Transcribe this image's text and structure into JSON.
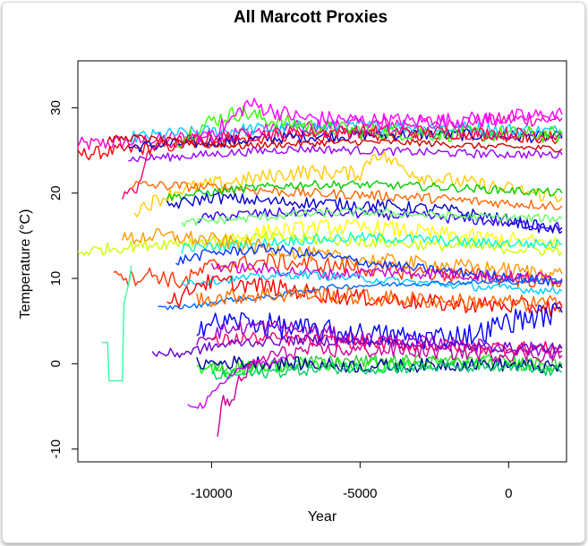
{
  "chart_data": {
    "type": "line",
    "title": "All Marcott Proxies",
    "xlabel": "Year",
    "ylabel": "Temperature (°C)",
    "xlim": [
      -14500,
      1950
    ],
    "ylim": [
      -11.5,
      35.5
    ],
    "x_ticks": [
      -10000,
      -5000,
      0
    ],
    "x_tick_labels": [
      "-10000",
      "-5000",
      "0"
    ],
    "y_ticks": [
      -10,
      0,
      10,
      20,
      30
    ],
    "y_tick_labels": [
      "-10",
      "0",
      "10",
      "20",
      "30"
    ],
    "grid": false,
    "legend": "none",
    "series": [
      {
        "color": "#ff00cc",
        "x": [
          -14600,
          -12000,
          -10000,
          -8000,
          -6000,
          -4000,
          -2000,
          0,
          1800
        ],
        "y": [
          25.6,
          26.2,
          26.8,
          27.4,
          27.9,
          28.2,
          28.4,
          28.6,
          28.8
        ],
        "noise": 0.9
      },
      {
        "color": "#ff0000",
        "x": [
          -14600,
          -12000,
          -10000,
          -8000,
          -6000,
          -4000,
          -2000,
          0,
          1800
        ],
        "y": [
          24.5,
          25.3,
          26.0,
          26.5,
          26.8,
          26.9,
          27.0,
          26.8,
          26.4
        ],
        "noise": 0.8
      },
      {
        "color": "#0000cc",
        "x": [
          -12800,
          -11000,
          -9000,
          -7000,
          -5000,
          -3000,
          -1000,
          1800
        ],
        "y": [
          25.4,
          25.8,
          26.2,
          26.6,
          26.8,
          26.9,
          26.8,
          26.5
        ],
        "noise": 0.7
      },
      {
        "color": "#00ccff",
        "x": [
          -12700,
          -11000,
          -9000,
          -7000,
          -5000,
          -3000,
          -1000,
          1800
        ],
        "y": [
          26.5,
          27.0,
          27.4,
          27.7,
          27.8,
          27.8,
          27.6,
          27.2
        ],
        "noise": 0.8
      },
      {
        "color": "#33ff00",
        "x": [
          -11200,
          -10000,
          -9000,
          -8000,
          -6000,
          -4000,
          -2000,
          1800
        ],
        "y": [
          26.0,
          28.5,
          29.5,
          28.5,
          27.5,
          27.2,
          27.0,
          26.8
        ],
        "noise": 1.0
      },
      {
        "color": "#ff00ff",
        "x": [
          -10500,
          -9500,
          -8800,
          -7000,
          -5000,
          -3000,
          -1000,
          1800
        ],
        "y": [
          26.5,
          28.0,
          30.5,
          28.8,
          28.5,
          28.4,
          28.6,
          29.2
        ],
        "noise": 1.0
      },
      {
        "color": "#ff0066",
        "x": [
          -13000,
          -12600,
          -12000,
          -10000,
          -8000,
          -6000,
          -4000,
          -2000,
          0,
          1800
        ],
        "y": [
          20.0,
          20.0,
          25.5,
          26.5,
          27.0,
          27.2,
          27.3,
          27.1,
          27.0,
          26.7
        ],
        "noise": 0.8
      },
      {
        "color": "#cc0000",
        "x": [
          -13500,
          -12500,
          -11000,
          -9000,
          -7000,
          -5000,
          -3000,
          -1000,
          1800
        ],
        "y": [
          26.3,
          26.5,
          26.0,
          25.5,
          25.8,
          26.0,
          25.9,
          25.5,
          25.2
        ],
        "noise": 0.4
      },
      {
        "color": "#9900ff",
        "x": [
          -12800,
          -11000,
          -9000,
          -7000,
          -5000,
          -3000,
          -1000,
          1800
        ],
        "y": [
          24.0,
          24.3,
          24.8,
          25.2,
          25.0,
          24.8,
          24.6,
          24.5
        ],
        "noise": 0.5
      },
      {
        "color": "#ffcc00",
        "x": [
          -12600,
          -11000,
          -9000,
          -7000,
          -5000,
          -4500,
          -3000,
          -1000,
          1800
        ],
        "y": [
          18.0,
          20.5,
          21.5,
          22.5,
          22.3,
          24.8,
          22.0,
          21.0,
          19.5
        ],
        "noise": 0.9
      },
      {
        "color": "#ff6600",
        "x": [
          -12700,
          -11000,
          -9000,
          -7000,
          -5000,
          -3000,
          -1000,
          1800
        ],
        "y": [
          21.0,
          20.8,
          20.5,
          20.0,
          19.8,
          19.5,
          19.0,
          18.5
        ],
        "noise": 0.6
      },
      {
        "color": "#00cc00",
        "x": [
          -11500,
          -9000,
          -7000,
          -5000,
          -3000,
          -1000,
          1800
        ],
        "y": [
          19.5,
          20.5,
          21.0,
          21.0,
          20.8,
          20.5,
          20.0
        ],
        "noise": 0.5
      },
      {
        "color": "#0000cc",
        "x": [
          -11500,
          -10000,
          -8000,
          -6000,
          -4000,
          -2000,
          0,
          1800
        ],
        "y": [
          18.5,
          19.5,
          19.0,
          18.8,
          18.5,
          18.0,
          16.8,
          15.5
        ],
        "noise": 0.7
      },
      {
        "color": "#3300ff",
        "x": [
          -10500,
          -9000,
          -7000,
          -5000,
          -3000,
          -1000,
          1800
        ],
        "y": [
          17.0,
          17.5,
          17.8,
          17.6,
          17.3,
          16.8,
          16.0
        ],
        "noise": 0.6
      },
      {
        "color": "#66ff66",
        "x": [
          -11000,
          -9000,
          -7000,
          -5000,
          -3000,
          -1000,
          1800
        ],
        "y": [
          16.5,
          17.0,
          17.5,
          17.8,
          17.5,
          17.2,
          17.0
        ],
        "noise": 0.5
      },
      {
        "color": "#ffff00",
        "x": [
          -10000,
          -8000,
          -6000,
          -4000,
          -2000,
          0,
          1800
        ],
        "y": [
          14.0,
          15.5,
          16.0,
          15.8,
          15.0,
          14.5,
          14.0
        ],
        "noise": 1.0
      },
      {
        "color": "#ccff00",
        "x": [
          -14600,
          -13500,
          -12000,
          -10000,
          -8000,
          -6000,
          -4000,
          -2000,
          0,
          1800
        ],
        "y": [
          13.0,
          13.5,
          14.0,
          14.5,
          14.8,
          14.5,
          14.2,
          13.8,
          13.5,
          13.2
        ],
        "noise": 0.7
      },
      {
        "color": "#00ffcc",
        "x": [
          -11000,
          -9000,
          -7000,
          -5000,
          -3000,
          -1000,
          1800
        ],
        "y": [
          13.5,
          14.0,
          14.5,
          14.8,
          14.6,
          14.2,
          14.0
        ],
        "noise": 0.6
      },
      {
        "color": "#ff3300",
        "x": [
          -13300,
          -12800,
          -12000,
          -11000,
          -10000,
          -8000,
          -6000,
          -4000,
          -2000,
          0,
          1800
        ],
        "y": [
          11.5,
          10.0,
          10.5,
          9.5,
          11.5,
          12.0,
          11.5,
          11.0,
          10.5,
          10.0,
          9.8
        ],
        "noise": 1.0
      },
      {
        "color": "#ff9900",
        "x": [
          -13000,
          -12000,
          -11000,
          -10000,
          -8000,
          -6000,
          -4000,
          -2000,
          0,
          1800
        ],
        "y": [
          14.5,
          15.0,
          14.8,
          14.5,
          13.5,
          12.5,
          12.0,
          11.5,
          11.0,
          10.5
        ],
        "noise": 0.9
      },
      {
        "color": "#0033ff",
        "x": [
          -11200,
          -10000,
          -8000,
          -6000,
          -4000,
          -2000,
          0,
          1800
        ],
        "y": [
          12.0,
          13.0,
          13.5,
          12.5,
          11.5,
          10.8,
          10.2,
          9.5
        ],
        "noise": 0.6
      },
      {
        "color": "#cc00cc",
        "x": [
          -10000,
          -8000,
          -6000,
          -4000,
          -2000,
          0,
          1800
        ],
        "y": [
          11.5,
          11.0,
          10.5,
          10.8,
          10.5,
          10.2,
          10.0
        ],
        "noise": 0.7
      },
      {
        "color": "#00ccff",
        "x": [
          -11000,
          -9000,
          -7000,
          -5000,
          -3000,
          -1000,
          1800
        ],
        "y": [
          9.5,
          10.0,
          10.5,
          10.0,
          9.5,
          9.0,
          8.5
        ],
        "noise": 0.5
      },
      {
        "color": "#ff0000",
        "x": [
          -11500,
          -11000,
          -10500,
          -9500,
          -8000,
          -6000,
          -4000,
          -2000,
          0,
          1800
        ],
        "y": [
          8.0,
          7.5,
          9.5,
          9.5,
          9.0,
          8.0,
          7.5,
          7.0,
          6.8,
          6.5
        ],
        "noise": 1.0
      },
      {
        "color": "#0066ff",
        "x": [
          -11800,
          -10500,
          -9500,
          -8000,
          -7000,
          -6000,
          -4000,
          -2000,
          0,
          1800
        ],
        "y": [
          6.5,
          6.8,
          7.5,
          7.8,
          8.5,
          9.0,
          9.3,
          9.5,
          9.6,
          9.8
        ],
        "noise": 0.3
      },
      {
        "color": "#ff6600",
        "x": [
          -10500,
          -9000,
          -7000,
          -5000,
          -3000,
          -1000,
          1800
        ],
        "y": [
          7.5,
          8.0,
          8.2,
          7.8,
          7.5,
          7.2,
          7.0
        ],
        "noise": 1.0
      },
      {
        "color": "#0000ff",
        "x": [
          -10500,
          -9000,
          -7000,
          -5000,
          -3000,
          -1000,
          0,
          1800
        ],
        "y": [
          4.5,
          5.0,
          4.0,
          3.5,
          3.0,
          3.5,
          5.0,
          6.0
        ],
        "noise": 1.4
      },
      {
        "color": "#9900cc",
        "x": [
          -10500,
          -9500,
          -8500,
          -7000,
          -5000,
          -3000,
          -1000,
          1800
        ],
        "y": [
          3.0,
          4.0,
          4.5,
          4.0,
          3.0,
          2.5,
          2.0,
          1.5
        ],
        "noise": 0.9
      },
      {
        "color": "#ff0066",
        "x": [
          -10000,
          -9000,
          -7000,
          -5000,
          -3000,
          -1000,
          1800
        ],
        "y": [
          2.5,
          3.0,
          2.8,
          2.5,
          2.2,
          2.0,
          1.8
        ],
        "noise": 0.8
      },
      {
        "color": "#6600cc",
        "x": [
          -12000,
          -11000,
          -10000,
          -9000,
          -7000,
          -5000,
          -3000,
          -1000,
          1800
        ],
        "y": [
          1.2,
          1.2,
          2.0,
          2.5,
          2.8,
          2.6,
          2.4,
          2.0,
          1.8
        ],
        "noise": 0.6
      },
      {
        "color": "#00ff00",
        "x": [
          -10500,
          -9000,
          -7000,
          -5000,
          -3000,
          -1000,
          1800
        ],
        "y": [
          -1.0,
          -0.5,
          0.0,
          -0.2,
          0.0,
          0.2,
          0.0
        ],
        "noise": 0.9
      },
      {
        "color": "#33cc33",
        "x": [
          -10000,
          -8000,
          -6000,
          -4000,
          -2000,
          0,
          1800
        ],
        "y": [
          -0.5,
          -0.2,
          0.2,
          0.3,
          0.2,
          0.0,
          -0.3
        ],
        "noise": 0.8
      },
      {
        "color": "#000099",
        "x": [
          -10500,
          -9000,
          -7000,
          -5000,
          -3000,
          -1000,
          1800
        ],
        "y": [
          0.0,
          0.2,
          0.0,
          -0.3,
          -0.2,
          0.0,
          -0.5
        ],
        "noise": 0.8
      },
      {
        "color": "#00cc66",
        "x": [
          -10000,
          -8000,
          -6000,
          -4000,
          -2000,
          0,
          1800
        ],
        "y": [
          -1.5,
          -1.0,
          -0.5,
          -0.5,
          -0.3,
          -0.5,
          -1.0
        ],
        "noise": 0.7
      },
      {
        "color": "#cc00ff",
        "x": [
          -10800,
          -10300,
          -9800,
          -9300,
          -8500,
          -7500
        ],
        "y": [
          -4.5,
          -5.0,
          -3.0,
          -1.0,
          0.0,
          0.5
        ],
        "noise": 0.5
      },
      {
        "color": "#cc0099",
        "x": [
          -9800,
          -9600,
          -9400,
          -9000,
          -8500,
          -8000,
          -7000,
          -6000,
          -5000,
          -3000,
          -1000,
          1800
        ],
        "y": [
          -8.5,
          -4.0,
          -5.0,
          -1.5,
          0.0,
          1.0,
          1.5,
          1.5,
          1.6,
          1.5,
          1.2,
          1.0
        ],
        "noise": 0.9
      },
      {
        "color": "#33ffaa",
        "x": [
          -13700,
          -13500,
          -13450,
          -13000,
          -12950,
          -12750,
          -12700
        ],
        "y": [
          2.5,
          2.5,
          -2.0,
          -2.0,
          7.0,
          10.0,
          11.5
        ],
        "noise": 0.0
      }
    ]
  }
}
